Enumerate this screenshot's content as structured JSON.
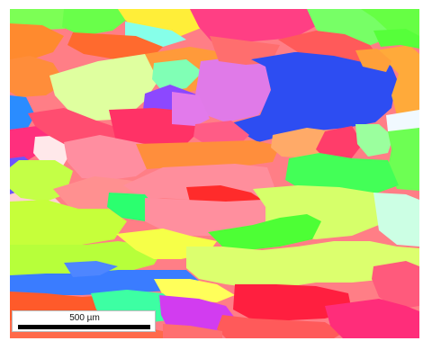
{
  "scale_bar": {
    "label": "500 µm"
  },
  "colors": {
    "dominant": [
      "#ff6b6b",
      "#2c4cf0",
      "#dfff9a",
      "#ff8ea0",
      "#b9ff3a",
      "#ff3b7c",
      "#ffa556"
    ]
  }
}
